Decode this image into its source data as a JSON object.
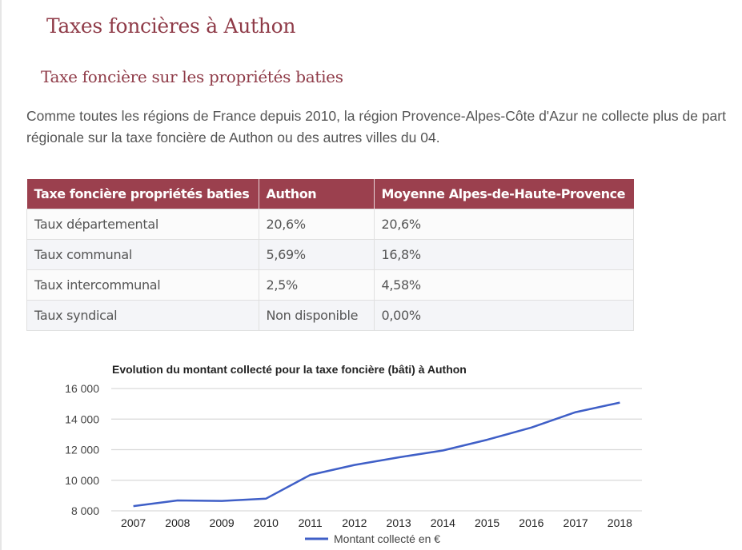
{
  "page": {
    "title": "Taxes foncières à Authon",
    "subtitle": "Taxe foncière sur les propriétés baties",
    "intro": "Comme toutes les régions de France depuis 2010, la région Provence-Alpes-Côte d'Azur ne collecte plus de part régionale sur la taxe foncière de Authon ou des autres villes du 04."
  },
  "table": {
    "headers": [
      "Taxe foncière propriétés baties",
      "Authon",
      "Moyenne Alpes-de-Haute-Provence"
    ],
    "rows": [
      [
        "Taux départemental",
        "20,6%",
        "20,6%"
      ],
      [
        "Taux communal",
        "5,69%",
        "16,8%"
      ],
      [
        "Taux intercommunal",
        "2,5%",
        "4,58%"
      ],
      [
        "Taux syndical",
        "Non disponible",
        "0,00%"
      ]
    ]
  },
  "colors": {
    "heading": "#8f3b48",
    "table_header_bg": "#9b404e",
    "series_line": "#3f5fc7",
    "gridline": "#d9d9d9"
  },
  "chart_data": {
    "type": "line",
    "title": "Evolution du montant collecté pour la taxe foncière (bâti) à Authon",
    "xlabel": "",
    "ylabel": "",
    "x": [
      "2007",
      "2008",
      "2009",
      "2010",
      "2011",
      "2012",
      "2013",
      "2014",
      "2015",
      "2016",
      "2017",
      "2018"
    ],
    "series": [
      {
        "name": "Montant collecté en €",
        "values": [
          8310,
          8680,
          8650,
          8800,
          10350,
          11000,
          11500,
          11950,
          12650,
          13450,
          14450,
          15080
        ]
      }
    ],
    "ylim": [
      8000,
      16000
    ],
    "yticks": [
      8000,
      10000,
      12000,
      14000,
      16000
    ],
    "ytick_labels": [
      "8 000",
      "10 000",
      "12 000",
      "14 000",
      "16 000"
    ],
    "grid": true,
    "legend": "bottom"
  }
}
